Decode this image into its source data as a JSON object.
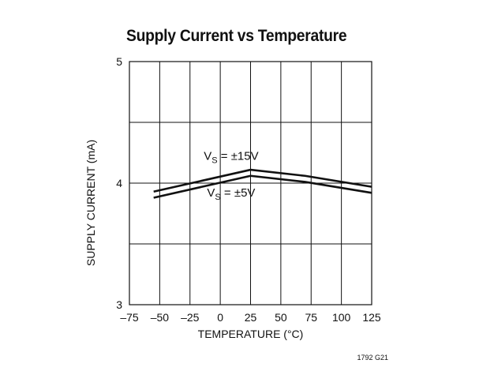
{
  "figure_id": "1792 G21",
  "chart_data": {
    "type": "line",
    "title": "Supply Current vs Temperature",
    "xlabel": "TEMPERATURE (°C)",
    "ylabel": "SUPPLY CURRENT (mA)",
    "xlim": [
      -75,
      125
    ],
    "ylim": [
      3,
      5
    ],
    "x_ticks": [
      -75,
      -50,
      -25,
      0,
      25,
      50,
      75,
      100,
      125
    ],
    "x_tick_labels": [
      "–75",
      "–50",
      "–25",
      "0",
      "25",
      "50",
      "75",
      "100",
      "125"
    ],
    "y_ticks": [
      3,
      4,
      5
    ],
    "y_tick_labels": [
      "3",
      "4",
      "5"
    ],
    "grid": true,
    "series": [
      {
        "name": "VS = ±15V",
        "label_main": "V",
        "label_sub": "S",
        "label_rest": " = ±15V",
        "x": [
          -55,
          25,
          70,
          125
        ],
        "y": [
          3.93,
          4.11,
          4.06,
          3.97
        ],
        "label_at": [
          9,
          4.19
        ]
      },
      {
        "name": "VS = ±5V",
        "label_main": "V",
        "label_sub": "S",
        "label_rest": " = ±5V",
        "x": [
          -55,
          25,
          70,
          125
        ],
        "y": [
          3.88,
          4.06,
          4.01,
          3.92
        ],
        "label_at": [
          9,
          3.89
        ]
      }
    ]
  }
}
